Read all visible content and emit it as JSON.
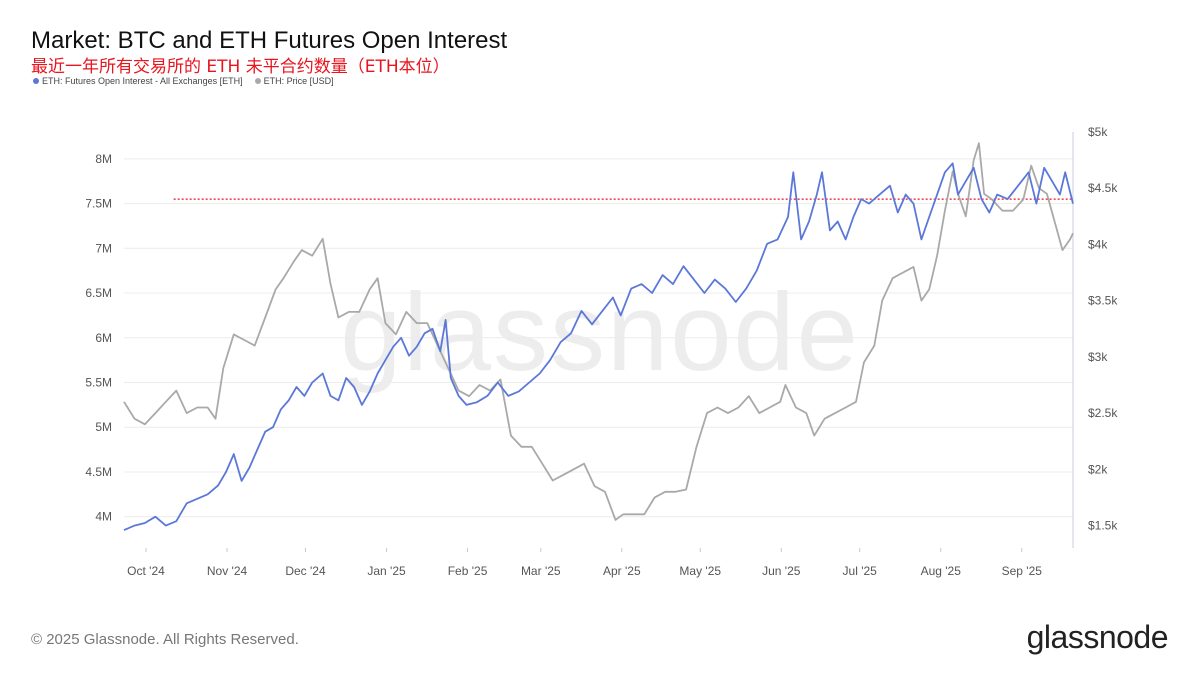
{
  "header": {
    "title": "Market: BTC and ETH Futures Open Interest",
    "subtitle": "最近一年所有交易所的 ETH 未平合约数量（ETH本位）"
  },
  "footer": {
    "copyright": "© 2025 Glassnode. All Rights Reserved.",
    "logo": "glassnode"
  },
  "watermark": "glassnode",
  "colors": {
    "oi": "#5b78d9",
    "price": "#a9a9a9",
    "reference_line": "#e8141e",
    "axis_text": "#555555"
  },
  "chart_data": {
    "type": "line",
    "title": "Market: BTC and ETH Futures Open Interest",
    "x_tick_labels": [
      "Oct '24",
      "Nov '24",
      "Dec '24",
      "Jan '25",
      "Feb '25",
      "Mar '25",
      "Apr '25",
      "May '25",
      "Jun '25",
      "Jul '25",
      "Aug '25",
      "Sep '25"
    ],
    "x_range": [
      "2024-10-01",
      "2025-09-29"
    ],
    "y_left": {
      "ticks": [
        "4M",
        "4.5M",
        "5M",
        "5.5M",
        "6M",
        "6.5M",
        "7M",
        "7.5M",
        "8M"
      ],
      "range": [
        3.65,
        8.3
      ],
      "unit": "M ETH"
    },
    "y_right": {
      "ticks": [
        "$1.5k",
        "$2k",
        "$2.5k",
        "$3k",
        "$3.5k",
        "$4k",
        "$4.5k",
        "$5k"
      ],
      "range": [
        1.3,
        5.0
      ],
      "unit": "k USD"
    },
    "grid": "horizontal",
    "legend": "top-left",
    "reference_line": {
      "axis": "left",
      "value": 7.55,
      "style": "dotted",
      "color": "#e8141e",
      "x_start": "2024-10-20"
    },
    "series": [
      {
        "name": "ETH: Futures Open Interest - All Exchanges [ETH]",
        "axis": "left",
        "color": "#5b78d9",
        "points": [
          [
            "2024-10-01",
            3.85
          ],
          [
            "2024-10-05",
            3.9
          ],
          [
            "2024-10-09",
            3.93
          ],
          [
            "2024-10-13",
            4.0
          ],
          [
            "2024-10-17",
            3.9
          ],
          [
            "2024-10-21",
            3.95
          ],
          [
            "2024-10-25",
            4.15
          ],
          [
            "2024-10-29",
            4.2
          ],
          [
            "2024-11-02",
            4.25
          ],
          [
            "2024-11-06",
            4.35
          ],
          [
            "2024-11-09",
            4.5
          ],
          [
            "2024-11-12",
            4.7
          ],
          [
            "2024-11-15",
            4.4
          ],
          [
            "2024-11-18",
            4.55
          ],
          [
            "2024-11-21",
            4.75
          ],
          [
            "2024-11-24",
            4.95
          ],
          [
            "2024-11-27",
            5.0
          ],
          [
            "2024-11-30",
            5.2
          ],
          [
            "2024-12-03",
            5.3
          ],
          [
            "2024-12-06",
            5.45
          ],
          [
            "2024-12-09",
            5.35
          ],
          [
            "2024-12-12",
            5.5
          ],
          [
            "2024-12-16",
            5.6
          ],
          [
            "2024-12-19",
            5.35
          ],
          [
            "2024-12-22",
            5.3
          ],
          [
            "2024-12-25",
            5.55
          ],
          [
            "2024-12-28",
            5.45
          ],
          [
            "2024-12-31",
            5.25
          ],
          [
            "2025-01-03",
            5.4
          ],
          [
            "2025-01-06",
            5.6
          ],
          [
            "2025-01-09",
            5.75
          ],
          [
            "2025-01-12",
            5.9
          ],
          [
            "2025-01-15",
            6.0
          ],
          [
            "2025-01-18",
            5.8
          ],
          [
            "2025-01-21",
            5.9
          ],
          [
            "2025-01-24",
            6.05
          ],
          [
            "2025-01-27",
            6.1
          ],
          [
            "2025-01-30",
            5.85
          ],
          [
            "2025-02-01",
            6.2
          ],
          [
            "2025-02-03",
            5.55
          ],
          [
            "2025-02-06",
            5.35
          ],
          [
            "2025-02-09",
            5.25
          ],
          [
            "2025-02-13",
            5.28
          ],
          [
            "2025-02-17",
            5.35
          ],
          [
            "2025-02-21",
            5.5
          ],
          [
            "2025-02-25",
            5.35
          ],
          [
            "2025-03-01",
            5.4
          ],
          [
            "2025-03-05",
            5.5
          ],
          [
            "2025-03-09",
            5.6
          ],
          [
            "2025-03-13",
            5.75
          ],
          [
            "2025-03-17",
            5.95
          ],
          [
            "2025-03-21",
            6.05
          ],
          [
            "2025-03-25",
            6.3
          ],
          [
            "2025-03-29",
            6.15
          ],
          [
            "2025-04-02",
            6.3
          ],
          [
            "2025-04-06",
            6.45
          ],
          [
            "2025-04-09",
            6.25
          ],
          [
            "2025-04-13",
            6.55
          ],
          [
            "2025-04-17",
            6.6
          ],
          [
            "2025-04-21",
            6.5
          ],
          [
            "2025-04-25",
            6.7
          ],
          [
            "2025-04-29",
            6.6
          ],
          [
            "2025-05-03",
            6.8
          ],
          [
            "2025-05-07",
            6.65
          ],
          [
            "2025-05-11",
            6.5
          ],
          [
            "2025-05-15",
            6.65
          ],
          [
            "2025-05-19",
            6.55
          ],
          [
            "2025-05-23",
            6.4
          ],
          [
            "2025-05-27",
            6.55
          ],
          [
            "2025-05-31",
            6.75
          ],
          [
            "2025-06-04",
            7.05
          ],
          [
            "2025-06-08",
            7.1
          ],
          [
            "2025-06-12",
            7.35
          ],
          [
            "2025-06-14",
            7.85
          ],
          [
            "2025-06-17",
            7.1
          ],
          [
            "2025-06-20",
            7.3
          ],
          [
            "2025-06-23",
            7.6
          ],
          [
            "2025-06-25",
            7.85
          ],
          [
            "2025-06-28",
            7.2
          ],
          [
            "2025-07-01",
            7.3
          ],
          [
            "2025-07-04",
            7.1
          ],
          [
            "2025-07-07",
            7.35
          ],
          [
            "2025-07-10",
            7.55
          ],
          [
            "2025-07-13",
            7.5
          ],
          [
            "2025-07-17",
            7.6
          ],
          [
            "2025-07-21",
            7.7
          ],
          [
            "2025-07-24",
            7.4
          ],
          [
            "2025-07-27",
            7.6
          ],
          [
            "2025-07-30",
            7.5
          ],
          [
            "2025-08-02",
            7.1
          ],
          [
            "2025-08-05",
            7.35
          ],
          [
            "2025-08-08",
            7.6
          ],
          [
            "2025-08-11",
            7.85
          ],
          [
            "2025-08-14",
            7.95
          ],
          [
            "2025-08-16",
            7.6
          ],
          [
            "2025-08-19",
            7.75
          ],
          [
            "2025-08-22",
            7.9
          ],
          [
            "2025-08-25",
            7.55
          ],
          [
            "2025-08-28",
            7.4
          ],
          [
            "2025-08-31",
            7.6
          ],
          [
            "2025-09-04",
            7.55
          ],
          [
            "2025-09-08",
            7.7
          ],
          [
            "2025-09-12",
            7.85
          ],
          [
            "2025-09-15",
            7.5
          ],
          [
            "2025-09-18",
            7.9
          ],
          [
            "2025-09-21",
            7.75
          ],
          [
            "2025-09-24",
            7.6
          ],
          [
            "2025-09-26",
            7.85
          ],
          [
            "2025-09-29",
            7.5
          ]
        ]
      },
      {
        "name": "ETH: Price [USD]",
        "axis": "right",
        "color": "#a9a9a9",
        "points": [
          [
            "2024-10-01",
            2.6
          ],
          [
            "2024-10-05",
            2.45
          ],
          [
            "2024-10-09",
            2.4
          ],
          [
            "2024-10-13",
            2.5
          ],
          [
            "2024-10-17",
            2.6
          ],
          [
            "2024-10-21",
            2.7
          ],
          [
            "2024-10-25",
            2.5
          ],
          [
            "2024-10-29",
            2.55
          ],
          [
            "2024-11-02",
            2.55
          ],
          [
            "2024-11-05",
            2.45
          ],
          [
            "2024-11-08",
            2.9
          ],
          [
            "2024-11-12",
            3.2
          ],
          [
            "2024-11-16",
            3.15
          ],
          [
            "2024-11-20",
            3.1
          ],
          [
            "2024-11-24",
            3.35
          ],
          [
            "2024-11-28",
            3.6
          ],
          [
            "2024-12-01",
            3.7
          ],
          [
            "2024-12-05",
            3.85
          ],
          [
            "2024-12-08",
            3.95
          ],
          [
            "2024-12-12",
            3.9
          ],
          [
            "2024-12-16",
            4.05
          ],
          [
            "2024-12-19",
            3.65
          ],
          [
            "2024-12-22",
            3.35
          ],
          [
            "2024-12-26",
            3.4
          ],
          [
            "2024-12-30",
            3.4
          ],
          [
            "2025-01-03",
            3.6
          ],
          [
            "2025-01-06",
            3.7
          ],
          [
            "2025-01-09",
            3.3
          ],
          [
            "2025-01-13",
            3.2
          ],
          [
            "2025-01-17",
            3.4
          ],
          [
            "2025-01-21",
            3.3
          ],
          [
            "2025-01-25",
            3.3
          ],
          [
            "2025-01-29",
            3.1
          ],
          [
            "2025-02-02",
            2.9
          ],
          [
            "2025-02-06",
            2.7
          ],
          [
            "2025-02-10",
            2.65
          ],
          [
            "2025-02-14",
            2.75
          ],
          [
            "2025-02-18",
            2.7
          ],
          [
            "2025-02-22",
            2.8
          ],
          [
            "2025-02-26",
            2.3
          ],
          [
            "2025-03-02",
            2.2
          ],
          [
            "2025-03-06",
            2.2
          ],
          [
            "2025-03-10",
            2.05
          ],
          [
            "2025-03-14",
            1.9
          ],
          [
            "2025-03-18",
            1.95
          ],
          [
            "2025-03-22",
            2.0
          ],
          [
            "2025-03-26",
            2.05
          ],
          [
            "2025-03-30",
            1.85
          ],
          [
            "2025-04-03",
            1.8
          ],
          [
            "2025-04-07",
            1.55
          ],
          [
            "2025-04-10",
            1.6
          ],
          [
            "2025-04-14",
            1.6
          ],
          [
            "2025-04-18",
            1.6
          ],
          [
            "2025-04-22",
            1.75
          ],
          [
            "2025-04-26",
            1.8
          ],
          [
            "2025-04-30",
            1.8
          ],
          [
            "2025-05-04",
            1.82
          ],
          [
            "2025-05-08",
            2.2
          ],
          [
            "2025-05-12",
            2.5
          ],
          [
            "2025-05-16",
            2.55
          ],
          [
            "2025-05-20",
            2.5
          ],
          [
            "2025-05-24",
            2.55
          ],
          [
            "2025-05-28",
            2.65
          ],
          [
            "2025-06-01",
            2.5
          ],
          [
            "2025-06-05",
            2.55
          ],
          [
            "2025-06-09",
            2.6
          ],
          [
            "2025-06-11",
            2.75
          ],
          [
            "2025-06-15",
            2.55
          ],
          [
            "2025-06-19",
            2.5
          ],
          [
            "2025-06-22",
            2.3
          ],
          [
            "2025-06-26",
            2.45
          ],
          [
            "2025-06-30",
            2.5
          ],
          [
            "2025-07-04",
            2.55
          ],
          [
            "2025-07-08",
            2.6
          ],
          [
            "2025-07-11",
            2.95
          ],
          [
            "2025-07-15",
            3.1
          ],
          [
            "2025-07-18",
            3.5
          ],
          [
            "2025-07-22",
            3.7
          ],
          [
            "2025-07-26",
            3.75
          ],
          [
            "2025-07-30",
            3.8
          ],
          [
            "2025-08-02",
            3.5
          ],
          [
            "2025-08-05",
            3.6
          ],
          [
            "2025-08-08",
            3.9
          ],
          [
            "2025-08-11",
            4.3
          ],
          [
            "2025-08-14",
            4.65
          ],
          [
            "2025-08-16",
            4.45
          ],
          [
            "2025-08-19",
            4.25
          ],
          [
            "2025-08-22",
            4.75
          ],
          [
            "2025-08-24",
            4.9
          ],
          [
            "2025-08-26",
            4.45
          ],
          [
            "2025-08-29",
            4.4
          ],
          [
            "2025-09-02",
            4.3
          ],
          [
            "2025-09-06",
            4.3
          ],
          [
            "2025-09-10",
            4.4
          ],
          [
            "2025-09-13",
            4.7
          ],
          [
            "2025-09-16",
            4.5
          ],
          [
            "2025-09-19",
            4.45
          ],
          [
            "2025-09-22",
            4.2
          ],
          [
            "2025-09-25",
            3.95
          ],
          [
            "2025-09-28",
            4.05
          ],
          [
            "2025-09-29",
            4.1
          ]
        ]
      }
    ]
  }
}
